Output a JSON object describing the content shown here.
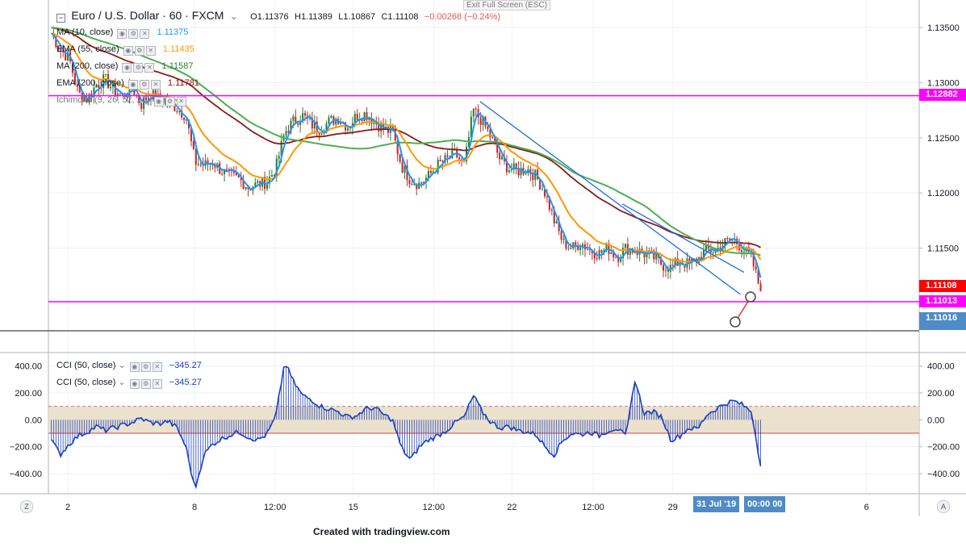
{
  "header": {
    "symbol": "Euro / U.S. Dollar · 60 · FXCM",
    "open": "O1.11376",
    "high": "H1.11389",
    "low": "L1.10867",
    "close": "C1.11108",
    "change": "−0.00268 (−0.24%)",
    "exit_fullscreen": "Exit Full Screen (ESC)"
  },
  "legend": [
    {
      "label": "MA (10, close)",
      "value": "1.11375",
      "color": "#2196f3"
    },
    {
      "label": "EMA (55, close)",
      "value": "1.11435",
      "color": "#ff9800"
    },
    {
      "label": "MA (200, close)",
      "value": "1.11587",
      "color": "#4caf50"
    },
    {
      "label": "EMA (200, close)",
      "value": "1.11781",
      "color": "#880e0e"
    },
    {
      "label": "Ichimoku (9, 26, 52, 26)",
      "value": "",
      "color": "#787b86"
    }
  ],
  "cci_legend": [
    {
      "label": "CCI (50, close)",
      "value": "−345.27"
    },
    {
      "label": "CCI (50, close)",
      "value": "−345.27"
    }
  ],
  "price_tags": {
    "resistance": "1.12882",
    "last": "1.11108",
    "support": "1.11013",
    "crosshair": "1.11016"
  },
  "time_tags": {
    "date": "31 Jul '19",
    "time": "00:00  00"
  },
  "buttons": {
    "left": "Z",
    "right": "A"
  },
  "credit": "Created with tradingview.com",
  "colors": {
    "up": "#26a69a",
    "down": "#ef5350",
    "ma10": "#2196f3",
    "ema55": "#ff9800",
    "ma200": "#4caf50",
    "ema200": "#8b1a1a",
    "level": "#ff00ff",
    "trend": "#1e6fd9",
    "cci": "#1a3fbf",
    "cci_band": "#e8dcc4"
  },
  "chart_data": [
    {
      "type": "candlestick",
      "title": "Euro / U.S. Dollar · 60 · FXCM",
      "x_ticks": [
        "2",
        "8",
        "12:00",
        "15",
        "12:00",
        "22",
        "12:00",
        "29",
        "6"
      ],
      "y_ticks": [
        "1.13500",
        "1.13000",
        "1.12500",
        "1.12000",
        "1.11500"
      ],
      "ylim": [
        1.1075,
        1.1375
      ],
      "series_close_path": [
        1.1345,
        1.133,
        1.1322,
        1.129,
        1.1285,
        1.1298,
        1.1303,
        1.1293,
        1.1288,
        1.1296,
        1.128,
        1.129,
        1.1285,
        1.1283,
        1.1277,
        1.127,
        1.1228,
        1.1225,
        1.1228,
        1.122,
        1.1215,
        1.1212,
        1.1205,
        1.1208,
        1.121,
        1.1222,
        1.1255,
        1.1265,
        1.127,
        1.1262,
        1.1258,
        1.1265,
        1.1268,
        1.126,
        1.127,
        1.1272,
        1.1265,
        1.1258,
        1.1255,
        1.1225,
        1.1212,
        1.1208,
        1.1215,
        1.1225,
        1.123,
        1.1235,
        1.1225,
        1.1275,
        1.1265,
        1.125,
        1.123,
        1.1222,
        1.122,
        1.1222,
        1.1215,
        1.12,
        1.1175,
        1.1155,
        1.115,
        1.1155,
        1.1148,
        1.1145,
        1.115,
        1.1142,
        1.115,
        1.1148,
        1.1145,
        1.1142,
        1.1135,
        1.1132,
        1.1138,
        1.1135,
        1.114,
        1.1148,
        1.1148,
        1.1155,
        1.1158,
        1.115,
        1.114,
        1.11108
      ],
      "series": [
        {
          "name": "MA (10, close)",
          "last": 1.11375
        },
        {
          "name": "EMA (55, close)",
          "last": 1.11435
        },
        {
          "name": "MA (200, close)",
          "last": 1.11587
        },
        {
          "name": "EMA (200, close)",
          "last": 1.11781
        }
      ],
      "horizontal_levels": [
        1.12882,
        1.11013
      ],
      "trendlines": [
        {
          "from": [
            "(about 19 Jul)",
            1.1283
          ],
          "to": [
            "(about 30 Jul)",
            1.1108
          ]
        },
        {
          "from": [
            "(about 26 Jul)",
            1.119
          ],
          "to": [
            "(about 30 Jul)",
            1.1128
          ]
        }
      ]
    },
    {
      "type": "line",
      "title": "CCI (50, close)",
      "y_ticks": [
        "400.00",
        "200.00",
        "0.00",
        "−200.00",
        "−400.00"
      ],
      "ylim": [
        -550,
        500
      ],
      "band": [
        -100,
        100
      ],
      "last": -345.27,
      "values": [
        -150,
        -260,
        -180,
        -120,
        -90,
        -50,
        -80,
        -60,
        -40,
        -20,
        10,
        -20,
        -30,
        -10,
        -60,
        -200,
        -520,
        -260,
        -180,
        -140,
        -110,
        -90,
        -130,
        -150,
        -110,
        20,
        430,
        280,
        180,
        150,
        100,
        80,
        60,
        20,
        30,
        80,
        90,
        40,
        0,
        -210,
        -300,
        -200,
        -150,
        -120,
        -80,
        -20,
        20,
        180,
        60,
        -20,
        -60,
        -50,
        -80,
        -90,
        -110,
        -200,
        -260,
        -150,
        -100,
        -110,
        -90,
        -120,
        -80,
        -60,
        -130,
        300,
        50,
        60,
        20,
        -150,
        -120,
        -60,
        -70,
        40,
        80,
        120,
        140,
        110,
        60,
        -345
      ]
    }
  ]
}
